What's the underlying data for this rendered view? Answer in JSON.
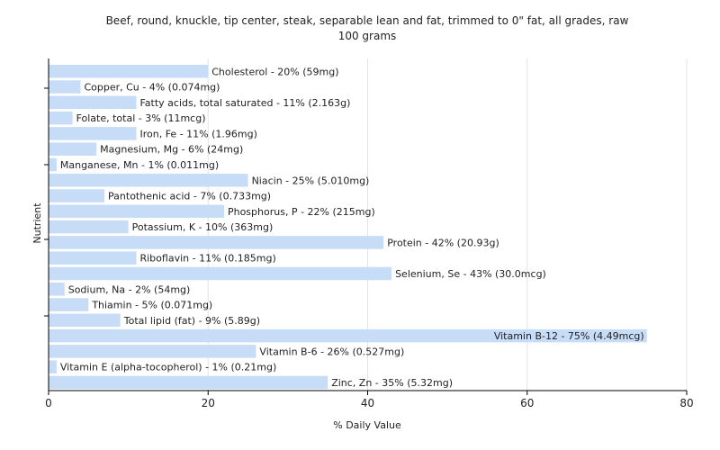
{
  "chart_data": {
    "type": "bar",
    "orientation": "horizontal",
    "title": "Beef, round, knuckle, tip center, steak, separable lean and fat, trimmed to 0\" fat, all grades, raw",
    "subtitle": "100 grams",
    "xlabel": "% Daily Value",
    "ylabel": "Nutrient",
    "xlim": [
      0,
      80
    ],
    "xticks": [
      0,
      20,
      40,
      60,
      80
    ],
    "grid": true,
    "bar_color": "#c6dcf7",
    "categories": [
      "Cholesterol",
      "Copper, Cu",
      "Fatty acids, total saturated",
      "Folate, total",
      "Iron, Fe",
      "Magnesium, Mg",
      "Manganese, Mn",
      "Niacin",
      "Pantothenic acid",
      "Phosphorus, P",
      "Potassium, K",
      "Protein",
      "Riboflavin",
      "Selenium, Se",
      "Sodium, Na",
      "Thiamin",
      "Total lipid (fat)",
      "Vitamin B-12",
      "Vitamin B-6",
      "Vitamin E (alpha-tocopherol)",
      "Zinc, Zn"
    ],
    "values": [
      20,
      4,
      11,
      3,
      11,
      6,
      1,
      25,
      7,
      22,
      10,
      42,
      11,
      43,
      2,
      5,
      9,
      75,
      26,
      1,
      35
    ],
    "labels": [
      "Cholesterol - 20% (59mg)",
      "Copper, Cu - 4% (0.074mg)",
      "Fatty acids, total saturated - 11% (2.163g)",
      "Folate, total - 3% (11mcg)",
      "Iron, Fe - 11% (1.96mg)",
      "Magnesium, Mg - 6% (24mg)",
      "Manganese, Mn - 1% (0.011mg)",
      "Niacin - 25% (5.010mg)",
      "Pantothenic acid - 7% (0.733mg)",
      "Phosphorus, P - 22% (215mg)",
      "Potassium, K - 10% (363mg)",
      "Protein - 42% (20.93g)",
      "Riboflavin - 11% (0.185mg)",
      "Selenium, Se - 43% (30.0mcg)",
      "Sodium, Na - 2% (54mg)",
      "Thiamin - 5% (0.071mg)",
      "Total lipid (fat) - 9% (5.89g)",
      "Vitamin B-12 - 75% (4.49mcg)",
      "Vitamin B-6 - 26% (0.527mg)",
      "Vitamin E (alpha-tocopherol) - 1% (0.21mg)",
      "Zinc, Zn - 35% (5.32mg)"
    ]
  }
}
